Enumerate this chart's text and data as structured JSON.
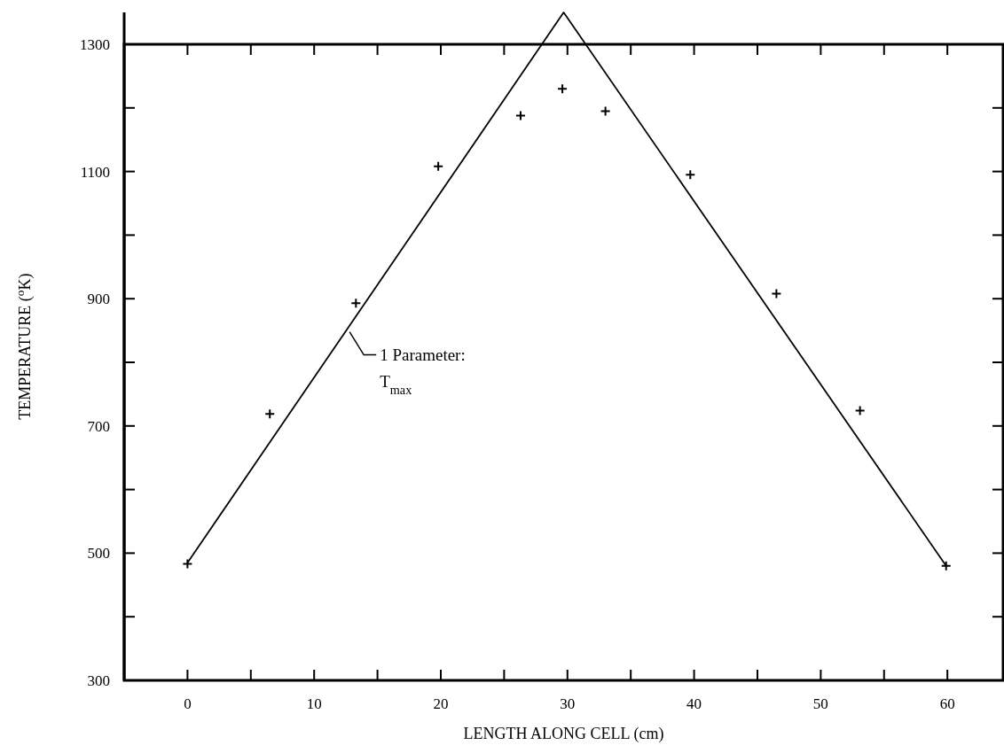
{
  "chart_data": {
    "type": "scatter",
    "xlabel": "LENGTH ALONG CELL (cm)",
    "ylabel": "TEMPERATURE ($^{o}$K)",
    "xlim": [
      -5,
      64.4
    ],
    "ylim": [
      300,
      1350
    ],
    "xticks": [
      0,
      {
        "value": 5,
        "label": null
      },
      10,
      {
        "value": 15,
        "label": null
      },
      20,
      {
        "value": 25,
        "label": null
      },
      30,
      {
        "value": 35,
        "label": null
      },
      40,
      {
        "value": 45,
        "label": null
      },
      50,
      {
        "value": 55,
        "label": null
      },
      60
    ],
    "yticks": [
      300,
      {
        "value": 400,
        "label": null
      },
      500,
      {
        "value": 600,
        "label": null
      },
      700,
      {
        "value": 800,
        "label": null
      },
      900,
      {
        "value": 1000,
        "label": null
      },
      1100,
      {
        "value": 1200,
        "label": null
      },
      1300
    ],
    "series": [
      {
        "color": "#000000",
        "marker": "cross",
        "x": [
          0,
          6.5,
          13.3,
          19.8,
          26.3,
          29.6,
          33.0,
          39.7,
          46.5,
          53.1,
          59.9
        ],
        "values": [
          483,
          719,
          893,
          1108,
          1188,
          1230,
          1195,
          1095,
          908,
          724,
          480
        ]
      },
      {
        "type": "line",
        "color": "#000000",
        "marker": "none",
        "line_style": "solid",
        "x": [
          0,
          29.7,
          59.9
        ],
        "values": [
          485,
          1350,
          480
        ]
      }
    ],
    "annotations": [
      {
        "text": "1 Parameter:\nT$_{max}$",
        "x": 12.8,
        "y": 848
      }
    ],
    "grid": false
  }
}
